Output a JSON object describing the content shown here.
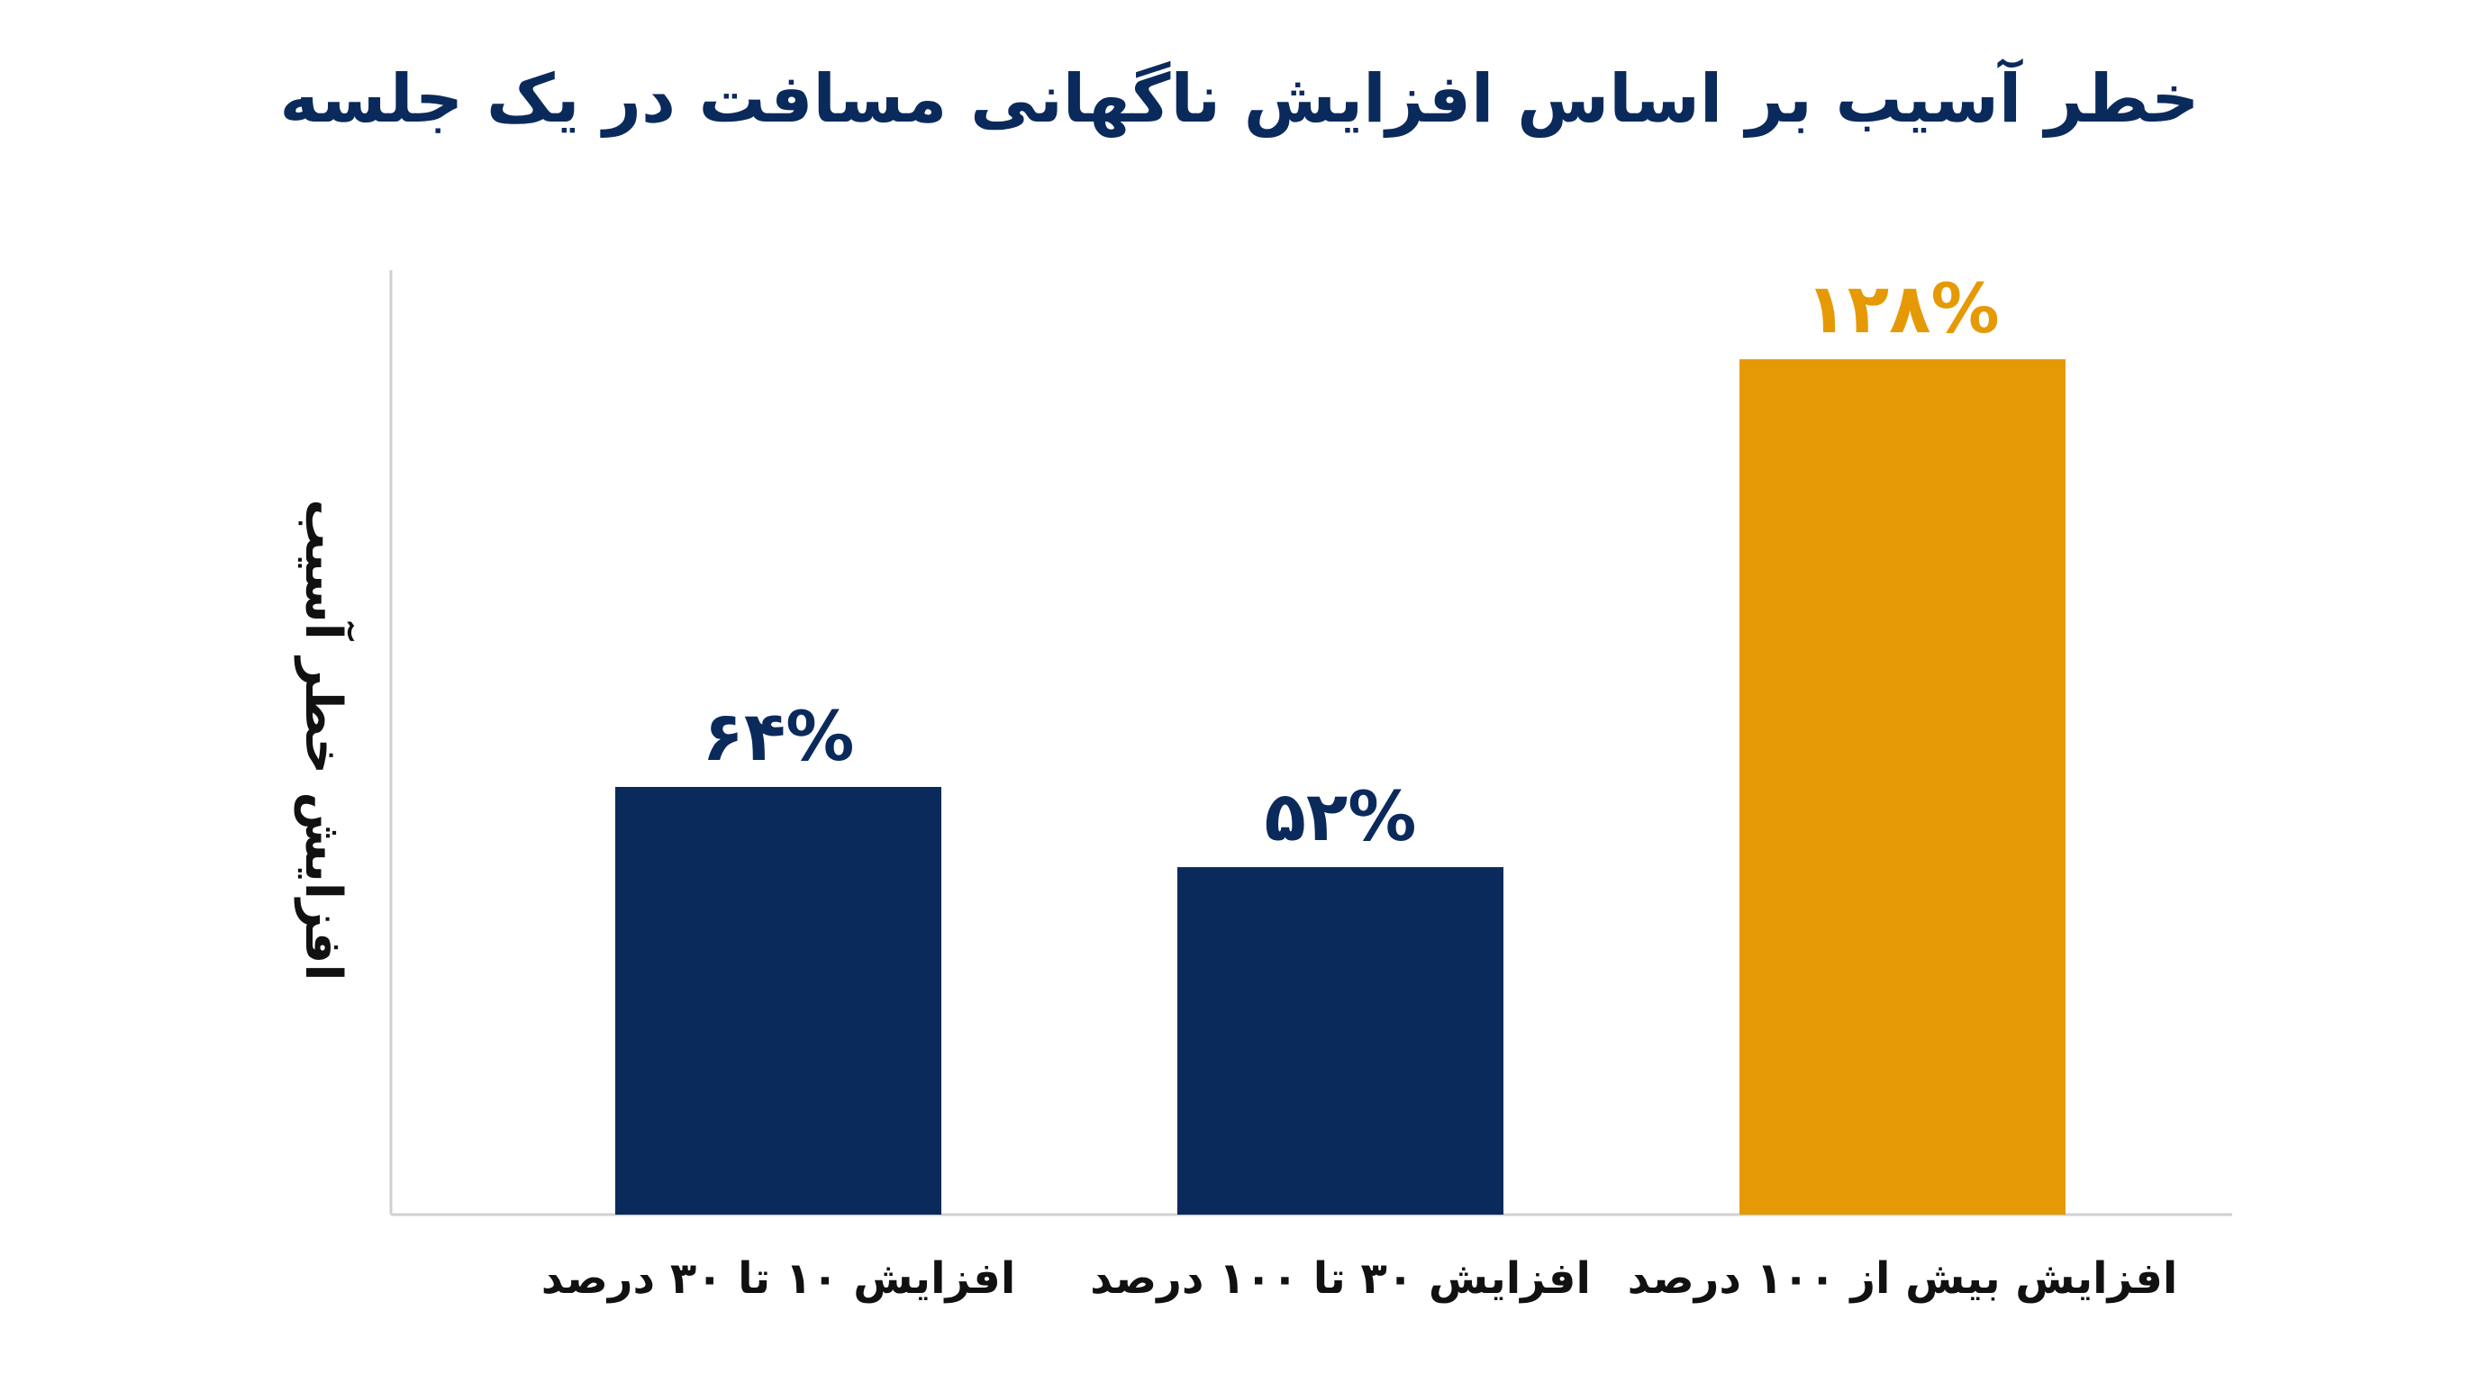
{
  "chart_data": {
    "type": "bar",
    "title": "خطر آسیب بر اساس افزایش ناگهانی مسافت در یک جلسه",
    "xlabel": "",
    "ylabel": "افزایش خطر آسیب",
    "categories": [
      "افزایش ۱۰ تا ۳۰ درصد",
      "افزایش ۳۰ تا ۱۰۰ درصد",
      "افزایش بیش از ۱۰۰ درصد"
    ],
    "values": [
      64,
      52,
      128
    ],
    "data_labels": [
      "۶۴%",
      "۵۲%",
      "۱۲۸%"
    ],
    "ylim": [
      0,
      140
    ],
    "grid": false,
    "legend": "none",
    "colors": [
      "#0a2a5c",
      "#0a2a5c",
      "#e59a05"
    ]
  }
}
